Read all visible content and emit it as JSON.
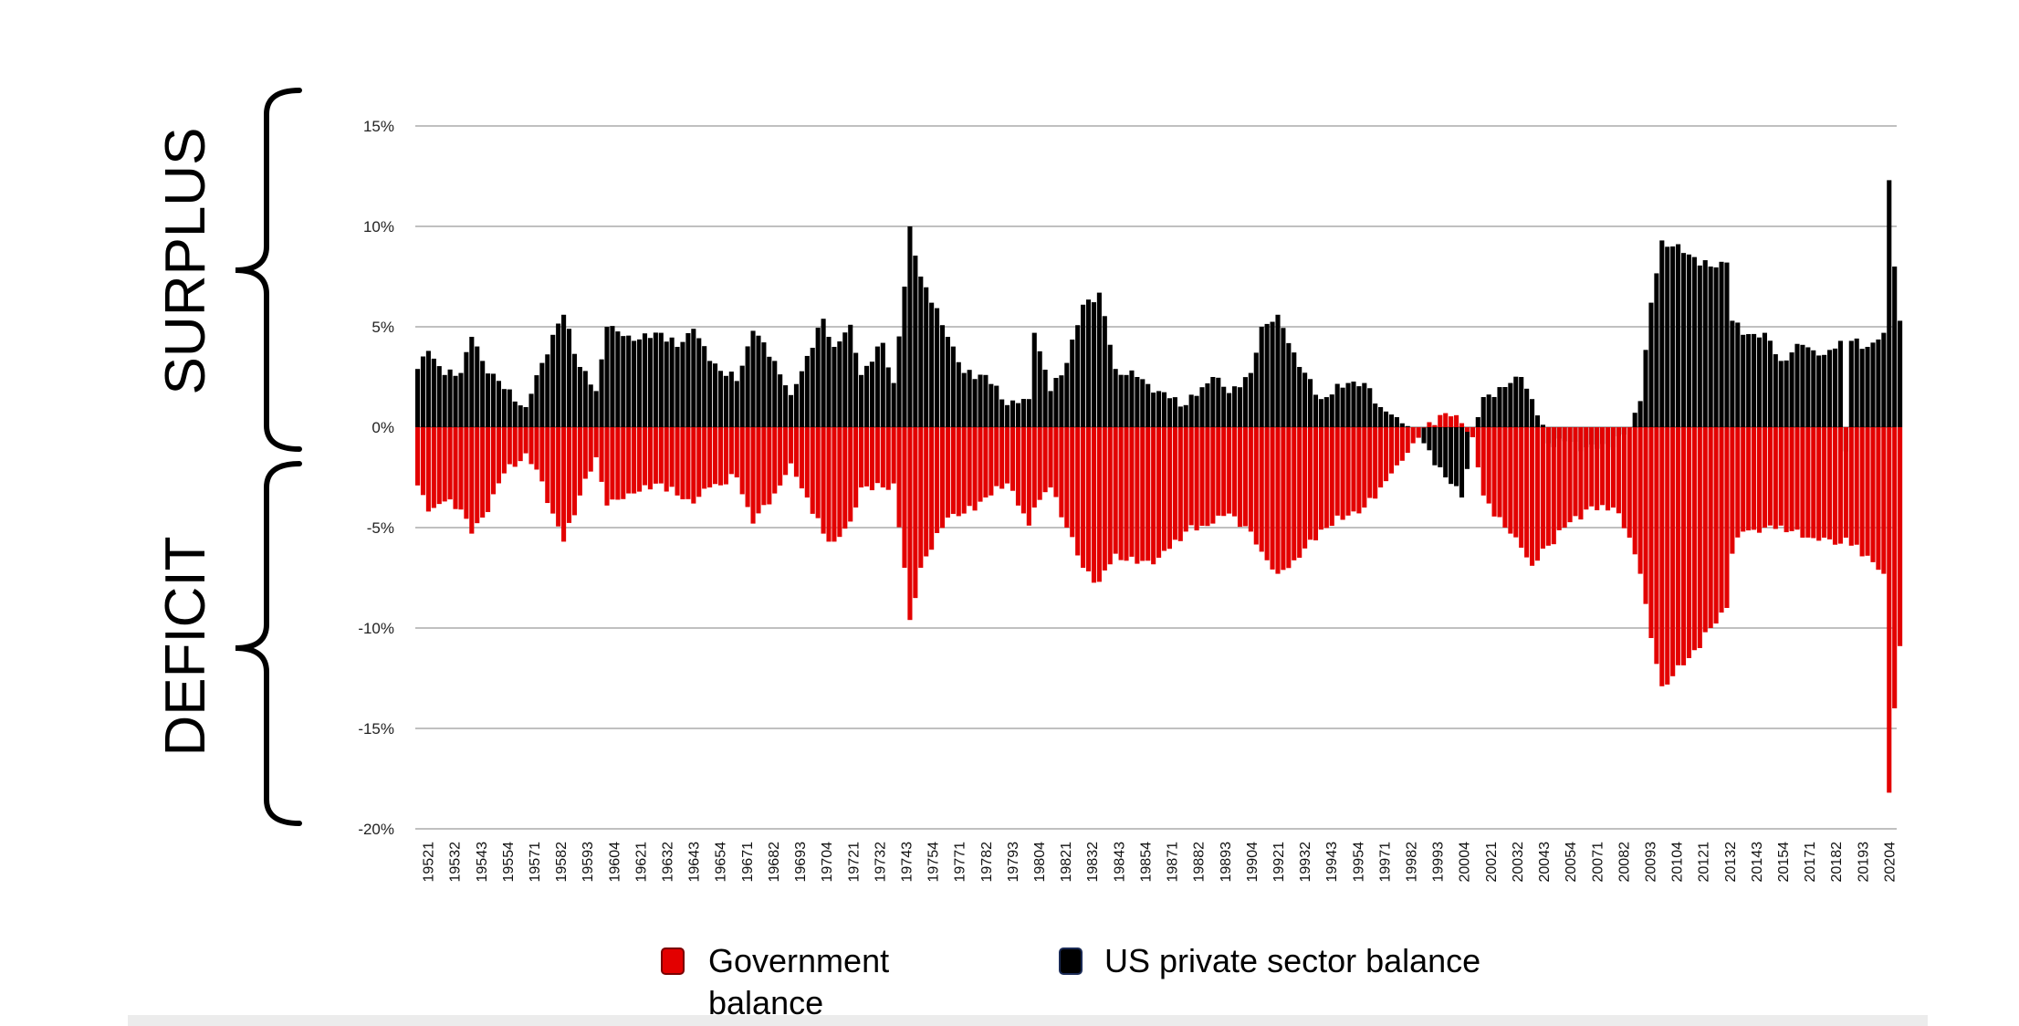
{
  "side_labels": {
    "top": "SURPLUS",
    "bottom": "DEFICIT"
  },
  "legend": {
    "government": "Government balance",
    "private": "US private sector balance"
  },
  "colors": {
    "government": "#e30000",
    "private": "#000000",
    "grid": "#9a9a9a"
  },
  "chart_data": {
    "type": "bar",
    "ylim": [
      -20,
      15
    ],
    "yticks": [
      15,
      10,
      5,
      0,
      -5,
      -10,
      -15,
      -20
    ],
    "ytick_labels": [
      "15%",
      "10%",
      "5%",
      "0%",
      "-5%",
      "-10%",
      "-15%",
      "-20%"
    ],
    "xtick_labels": [
      "19521",
      "19532",
      "19543",
      "19554",
      "19571",
      "19582",
      "19593",
      "19604",
      "19621",
      "19632",
      "19643",
      "19654",
      "19671",
      "19682",
      "19693",
      "19704",
      "19721",
      "19732",
      "19743",
      "19754",
      "19771",
      "19782",
      "19793",
      "19804",
      "19821",
      "19832",
      "19843",
      "19854",
      "19871",
      "19882",
      "19893",
      "19904",
      "19921",
      "19932",
      "19943",
      "19954",
      "19971",
      "19982",
      "19993",
      "20004",
      "20021",
      "20032",
      "20043",
      "20054",
      "20071",
      "20082",
      "20093",
      "20104",
      "20121",
      "20132",
      "20143",
      "20154",
      "20171",
      "20182",
      "20193",
      "20204"
    ],
    "series": [
      {
        "name": "US private sector balance",
        "keypoints": [
          [
            "1952Q1",
            2.9
          ],
          [
            "1952Q3",
            3.8
          ],
          [
            "1953Q2",
            2.6
          ],
          [
            "1954Q1",
            2.7
          ],
          [
            "1954Q3",
            4.5
          ],
          [
            "1955Q1",
            3.3
          ],
          [
            "1956Q1",
            1.9
          ],
          [
            "1957Q1",
            1.0
          ],
          [
            "1957Q4",
            3.2
          ],
          [
            "1958Q2",
            4.6
          ],
          [
            "1958Q4",
            5.6
          ],
          [
            "1959Q3",
            3.0
          ],
          [
            "1960Q2",
            1.8
          ],
          [
            "1960Q4",
            5.0
          ],
          [
            "1962Q1",
            4.3
          ],
          [
            "1963Q2",
            4.7
          ],
          [
            "1964Q1",
            4.0
          ],
          [
            "1964Q4",
            4.9
          ],
          [
            "1965Q3",
            3.3
          ],
          [
            "1966Q4",
            2.3
          ],
          [
            "1967Q3",
            4.8
          ],
          [
            "1968Q3",
            3.3
          ],
          [
            "1969Q2",
            1.6
          ],
          [
            "1970Q4",
            5.4
          ],
          [
            "1971Q2",
            4.0
          ],
          [
            "1972Q1",
            5.1
          ],
          [
            "1972Q3",
            2.6
          ],
          [
            "1973Q3",
            4.2
          ],
          [
            "1974Q1",
            2.2
          ],
          [
            "1974Q3",
            7.0
          ],
          [
            "1974Q4",
            10.0
          ],
          [
            "1975Q2",
            7.5
          ],
          [
            "1976Q3",
            4.5
          ],
          [
            "1977Q2",
            2.7
          ],
          [
            "1978Q2",
            2.6
          ],
          [
            "1979Q2",
            1.1
          ],
          [
            "1980Q2",
            1.4
          ],
          [
            "1980Q3",
            4.7
          ],
          [
            "1981Q2",
            1.8
          ],
          [
            "1982Q1",
            3.2
          ],
          [
            "1982Q4",
            6.1
          ],
          [
            "1983Q3",
            6.7
          ],
          [
            "1984Q2",
            2.9
          ],
          [
            "1985Q2",
            2.5
          ],
          [
            "1986Q2",
            1.8
          ],
          [
            "1987Q3",
            1.1
          ],
          [
            "1988Q4",
            2.5
          ],
          [
            "1989Q3",
            1.7
          ],
          [
            "1990Q3",
            2.7
          ],
          [
            "1991Q1",
            5.0
          ],
          [
            "1991Q4",
            5.6
          ],
          [
            "1992Q4",
            3.0
          ],
          [
            "1993Q4",
            1.4
          ],
          [
            "1995Q1",
            2.2
          ],
          [
            "1995Q4",
            2.2
          ],
          [
            "1996Q3",
            1.0
          ],
          [
            "1997Q2",
            0.5
          ],
          [
            "1998Q1",
            0.0
          ],
          [
            "1998Q3",
            -0.8
          ],
          [
            "1999Q3",
            -2.5
          ],
          [
            "2000Q2",
            -3.5
          ],
          [
            "2000Q4",
            -0.5
          ],
          [
            "2001Q1",
            0.5
          ],
          [
            "2001Q2",
            1.5
          ],
          [
            "2002Q2",
            2.0
          ],
          [
            "2003Q1",
            2.5
          ],
          [
            "2003Q3",
            1.4
          ],
          [
            "2004Q2",
            -0.8
          ],
          [
            "2005Q1",
            -0.7
          ],
          [
            "2006Q1",
            -1.0
          ],
          [
            "2007Q2",
            -1.0
          ],
          [
            "2008Q1",
            0.0
          ],
          [
            "2008Q3",
            1.3
          ],
          [
            "2009Q1",
            6.2
          ],
          [
            "2009Q3",
            9.3
          ],
          [
            "2010Q1",
            9.0
          ],
          [
            "2010Q4",
            8.6
          ],
          [
            "2011Q4",
            8.0
          ],
          [
            "2012Q3",
            8.2
          ],
          [
            "2012Q4",
            5.3
          ],
          [
            "2013Q2",
            4.6
          ],
          [
            "2014Q2",
            4.7
          ],
          [
            "2015Q1",
            3.3
          ],
          [
            "2016Q1",
            4.1
          ],
          [
            "2017Q1",
            3.6
          ],
          [
            "2017Q4",
            4.3
          ],
          [
            "2018Q1",
            -1.2
          ],
          [
            "2018Q2",
            4.3
          ],
          [
            "2019Q1",
            4.0
          ],
          [
            "2019Q4",
            4.7
          ],
          [
            "2020Q1",
            12.3
          ],
          [
            "2020Q2",
            8.0
          ],
          [
            "2020Q3",
            5.3
          ]
        ]
      },
      {
        "name": "Government balance",
        "keypoints": [
          [
            "1952Q1",
            -2.9
          ],
          [
            "1952Q3",
            -4.2
          ],
          [
            "1953Q2",
            -3.7
          ],
          [
            "1954Q1",
            -4.1
          ],
          [
            "1954Q3",
            -5.3
          ],
          [
            "1955Q1",
            -4.5
          ],
          [
            "1956Q1",
            -2.3
          ],
          [
            "1957Q1",
            -1.3
          ],
          [
            "1957Q4",
            -2.7
          ],
          [
            "1958Q2",
            -4.3
          ],
          [
            "1958Q4",
            -5.7
          ],
          [
            "1959Q3",
            -3.4
          ],
          [
            "1960Q2",
            -1.5
          ],
          [
            "1960Q4",
            -3.9
          ],
          [
            "1962Q1",
            -3.3
          ],
          [
            "1963Q2",
            -2.8
          ],
          [
            "1964Q1",
            -3.4
          ],
          [
            "1964Q4",
            -3.8
          ],
          [
            "1965Q3",
            -3.0
          ],
          [
            "1966Q4",
            -2.5
          ],
          [
            "1967Q3",
            -4.8
          ],
          [
            "1968Q3",
            -3.3
          ],
          [
            "1969Q2",
            -1.8
          ],
          [
            "1970Q4",
            -5.3
          ],
          [
            "1971Q2",
            -5.7
          ],
          [
            "1972Q1",
            -4.7
          ],
          [
            "1972Q3",
            -3.0
          ],
          [
            "1973Q3",
            -3.0
          ],
          [
            "1974Q1",
            -2.8
          ],
          [
            "1974Q3",
            -7.0
          ],
          [
            "1974Q4",
            -9.6
          ],
          [
            "1975Q2",
            -7.0
          ],
          [
            "1976Q3",
            -4.5
          ],
          [
            "1977Q2",
            -4.3
          ],
          [
            "1978Q2",
            -3.5
          ],
          [
            "1979Q2",
            -2.8
          ],
          [
            "1980Q2",
            -4.9
          ],
          [
            "1980Q3",
            -4.0
          ],
          [
            "1981Q2",
            -3.0
          ],
          [
            "1982Q1",
            -5.0
          ],
          [
            "1982Q4",
            -7.0
          ],
          [
            "1983Q3",
            -7.7
          ],
          [
            "1984Q2",
            -6.3
          ],
          [
            "1985Q2",
            -6.8
          ],
          [
            "1986Q2",
            -6.5
          ],
          [
            "1987Q3",
            -5.2
          ],
          [
            "1988Q4",
            -4.8
          ],
          [
            "1989Q3",
            -4.3
          ],
          [
            "1990Q3",
            -5.2
          ],
          [
            "1991Q1",
            -6.2
          ],
          [
            "1991Q4",
            -7.3
          ],
          [
            "1992Q4",
            -6.5
          ],
          [
            "1993Q4",
            -5.1
          ],
          [
            "1995Q1",
            -4.4
          ],
          [
            "1995Q4",
            -4.0
          ],
          [
            "1996Q3",
            -3.0
          ],
          [
            "1997Q2",
            -1.9
          ],
          [
            "1998Q1",
            -0.8
          ],
          [
            "1998Q3",
            0.0
          ],
          [
            "1999Q3",
            0.7
          ],
          [
            "2000Q2",
            0.2
          ],
          [
            "2000Q4",
            -0.5
          ],
          [
            "2001Q1",
            -2.0
          ],
          [
            "2001Q2",
            -3.4
          ],
          [
            "2002Q2",
            -5.0
          ],
          [
            "2003Q1",
            -6.0
          ],
          [
            "2003Q3",
            -6.9
          ],
          [
            "2004Q2",
            -5.9
          ],
          [
            "2005Q1",
            -5.0
          ],
          [
            "2006Q1",
            -4.1
          ],
          [
            "2007Q2",
            -4.0
          ],
          [
            "2008Q1",
            -5.5
          ],
          [
            "2008Q3",
            -7.3
          ],
          [
            "2009Q1",
            -10.5
          ],
          [
            "2009Q3",
            -12.9
          ],
          [
            "2010Q1",
            -12.4
          ],
          [
            "2010Q4",
            -11.5
          ],
          [
            "2011Q4",
            -10.0
          ],
          [
            "2012Q3",
            -9.0
          ],
          [
            "2012Q4",
            -6.3
          ],
          [
            "2013Q2",
            -5.2
          ],
          [
            "2014Q2",
            -5.0
          ],
          [
            "2015Q1",
            -4.9
          ],
          [
            "2016Q1",
            -5.5
          ],
          [
            "2017Q1",
            -5.5
          ],
          [
            "2017Q4",
            -5.8
          ],
          [
            "2018Q1",
            -5.5
          ],
          [
            "2018Q2",
            -5.9
          ],
          [
            "2019Q1",
            -6.4
          ],
          [
            "2019Q4",
            -7.3
          ],
          [
            "2020Q1",
            -18.2
          ],
          [
            "2020Q2",
            -14.0
          ],
          [
            "2020Q3",
            -10.9
          ]
        ]
      }
    ]
  }
}
